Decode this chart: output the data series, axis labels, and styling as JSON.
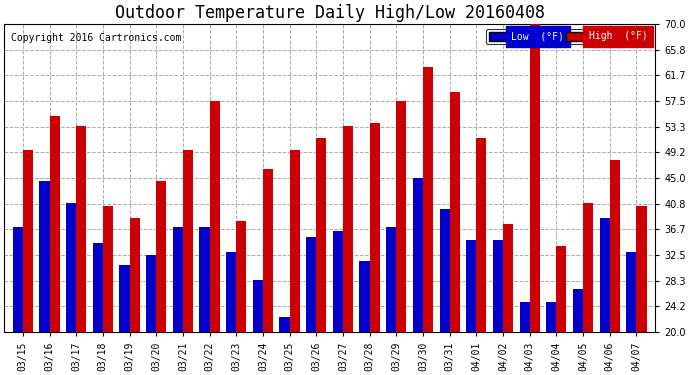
{
  "title": "Outdoor Temperature Daily High/Low 20160408",
  "copyright": "Copyright 2016 Cartronics.com",
  "legend_low": "Low  (°F)",
  "legend_high": "High  (°F)",
  "dates": [
    "03/15",
    "03/16",
    "03/17",
    "03/18",
    "03/19",
    "03/20",
    "03/21",
    "03/22",
    "03/23",
    "03/24",
    "03/25",
    "03/26",
    "03/27",
    "03/28",
    "03/29",
    "03/30",
    "03/31",
    "04/01",
    "04/02",
    "04/03",
    "04/04",
    "04/05",
    "04/06",
    "04/07"
  ],
  "lows": [
    37.0,
    44.5,
    41.0,
    34.5,
    31.0,
    32.5,
    37.0,
    37.0,
    33.0,
    28.5,
    22.5,
    35.5,
    36.5,
    31.5,
    37.0,
    45.0,
    40.0,
    35.0,
    35.0,
    25.0,
    25.0,
    27.0,
    38.5,
    33.0
  ],
  "highs": [
    49.5,
    55.0,
    53.5,
    40.5,
    38.5,
    44.5,
    49.5,
    57.5,
    38.0,
    46.5,
    49.5,
    51.5,
    53.5,
    54.0,
    57.5,
    63.0,
    59.0,
    51.5,
    37.5,
    70.0,
    34.0,
    41.0,
    48.0,
    40.5
  ],
  "low_color": "#0000cc",
  "high_color": "#cc0000",
  "bg_color": "#ffffff",
  "plot_bg_color": "#ffffff",
  "grid_color": "#aaaaaa",
  "ylim": [
    20.0,
    70.0
  ],
  "ymin": 20.0,
  "yticks": [
    20.0,
    24.2,
    28.3,
    32.5,
    36.7,
    40.8,
    45.0,
    49.2,
    53.3,
    57.5,
    61.7,
    65.8,
    70.0
  ],
  "title_fontsize": 12,
  "copyright_fontsize": 7,
  "tick_fontsize": 7,
  "bar_width": 0.38
}
